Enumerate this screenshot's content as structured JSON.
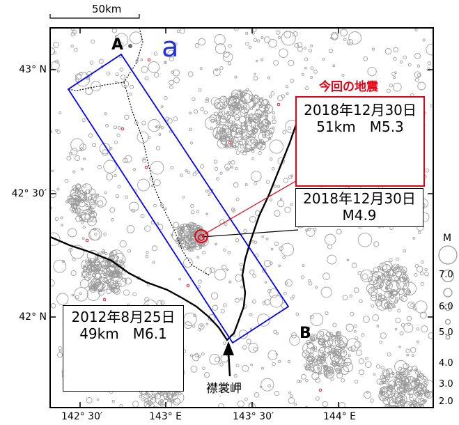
{
  "scale_bar": {
    "label": "50km"
  },
  "map_labels": {
    "point_a": "A",
    "point_b": "B",
    "region_a": "a",
    "cape": "襟裳岬"
  },
  "axes": {
    "lat_ticks": [
      "43° N",
      "42° 30′",
      "42° N"
    ],
    "lon_ticks": [
      "142° 30′",
      "143° E",
      "143° 30′",
      "144° E"
    ]
  },
  "callouts": {
    "current_title": "今回の地震",
    "event1": {
      "date": "2018年12月30日",
      "detail": "51km　M5.3"
    },
    "event2": {
      "date": "2018年12月30日",
      "detail": "M4.9"
    },
    "event3": {
      "date": "2012年8月25日",
      "detail": "49km　M6.1"
    }
  },
  "magnitude_legend": {
    "title": "M",
    "values": [
      "7.0",
      "6.0",
      "5.0",
      "4.0",
      "3.0",
      "2.0"
    ]
  },
  "colors": {
    "seismicity": "#999999",
    "recent": "#e60012",
    "region_box": "#0000ff",
    "coast": "#000000"
  }
}
